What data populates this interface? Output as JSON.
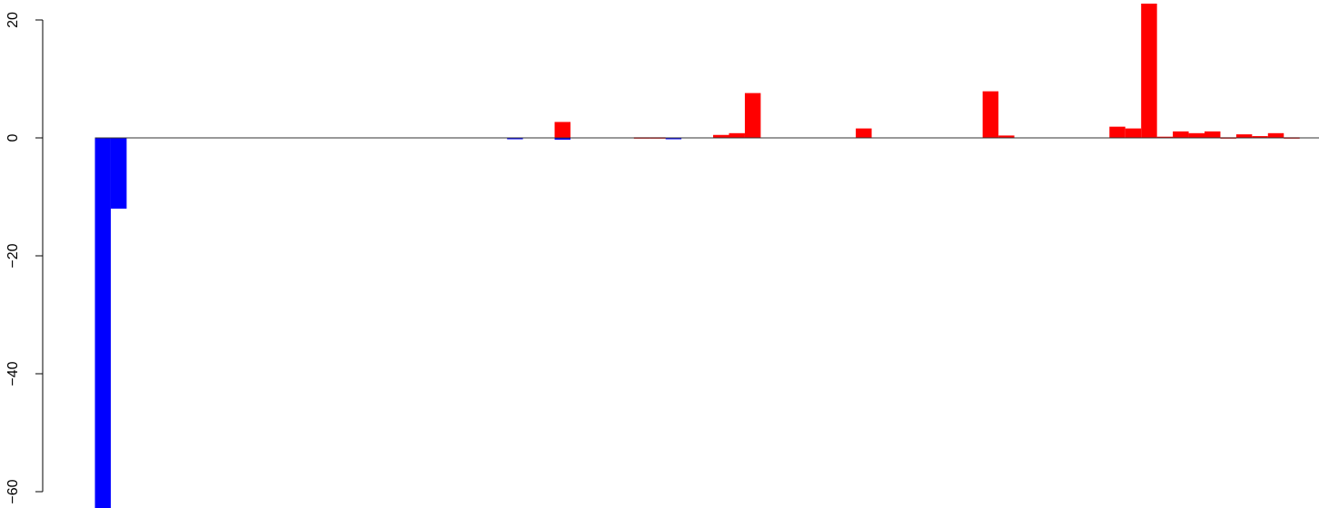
{
  "chart_data": {
    "type": "bar",
    "title": "",
    "xlabel": "",
    "ylabel": "",
    "ylim": [
      -63,
      23
    ],
    "yticks": [
      -60,
      -40,
      -20,
      0,
      20
    ],
    "ytick_labels": [
      "−60",
      "−40",
      "−20",
      "0",
      "20"
    ],
    "colors": {
      "positive": "#ff0000",
      "negative": "#0000ff",
      "baseline": "#333333"
    },
    "bar_count": 76,
    "values": [
      -63,
      -12,
      0,
      0,
      0,
      0,
      0,
      0,
      0,
      0,
      0,
      0,
      0,
      0,
      0,
      0,
      0,
      0,
      0,
      0,
      0,
      0,
      0,
      0,
      0,
      0,
      -0.1,
      0,
      0,
      2.7,
      0,
      0,
      0,
      0,
      0.1,
      0.1,
      -0.1,
      0,
      0,
      0.5,
      0.8,
      7.6,
      0,
      0,
      0,
      0,
      0,
      0,
      1.6,
      0,
      0,
      0,
      0,
      0,
      0,
      0,
      7.9,
      0.4,
      0,
      0,
      0,
      0,
      0,
      0,
      1.9,
      1.6,
      22.8,
      0.2,
      1.1,
      0.8,
      1.1,
      0.1,
      0.6,
      0.3,
      0.8,
      0.1
    ],
    "secondary_marks": [
      {
        "index": 29,
        "value": -0.3
      }
    ],
    "tail": [
      0,
      0,
      1.4,
      0.5,
      0.5
    ]
  }
}
